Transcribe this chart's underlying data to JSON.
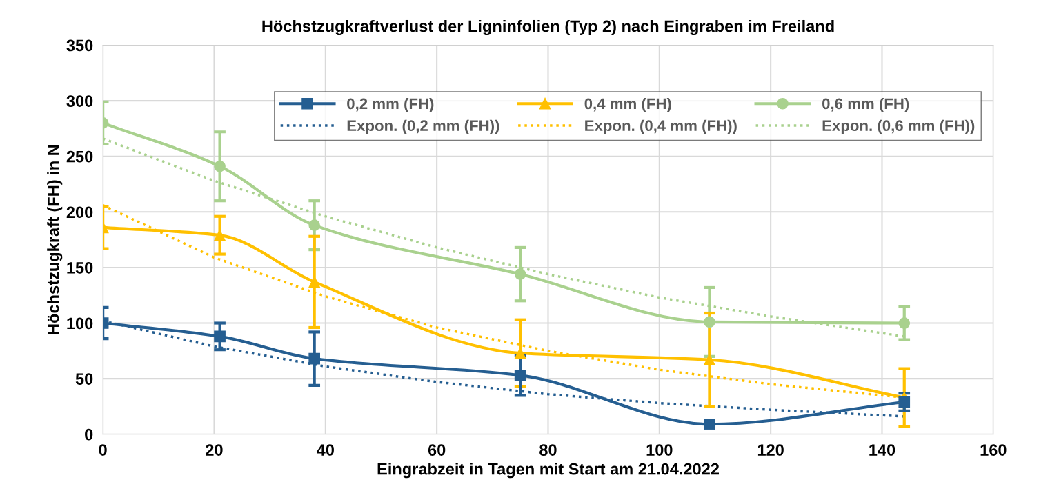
{
  "chart_data": {
    "type": "line",
    "title": "Höchstzugkraftverlust der Ligninfolien (Typ 2) nach Eingraben im Freiland",
    "xlabel": "Eingrabzeit in Tagen mit Start am 21.04.2022",
    "ylabel": "Höchstzugkraft (FH) in N",
    "x": [
      0,
      21,
      38,
      75,
      109,
      144
    ],
    "series": [
      {
        "name": "0,2 mm (FH)",
        "color": "#255e91",
        "marker": "square",
        "line_style": "solid",
        "values": [
          100,
          88,
          68,
          53,
          9,
          29
        ],
        "errors": [
          14,
          12,
          24,
          18,
          null,
          8
        ]
      },
      {
        "name": "Expon. (0,2 mm (FH))",
        "color": "#255e91",
        "marker": "none",
        "line_style": "dotted",
        "x": [
          0,
          20,
          40,
          60,
          80,
          100,
          120,
          144
        ],
        "values": [
          102,
          79,
          61,
          47,
          36,
          28,
          22,
          16
        ]
      },
      {
        "name": "0,4 mm (FH)",
        "color": "#ffc000",
        "marker": "triangle",
        "line_style": "solid",
        "values": [
          186,
          179,
          137,
          73,
          67,
          33
        ],
        "errors": [
          19,
          17,
          41,
          30,
          42,
          26
        ]
      },
      {
        "name": "Expon. (0,4 mm (FH))",
        "color": "#ffc000",
        "marker": "none",
        "line_style": "dotted",
        "x": [
          0,
          20,
          40,
          60,
          80,
          100,
          120,
          144
        ],
        "values": [
          206,
          159,
          124,
          96,
          75,
          58,
          45,
          33
        ]
      },
      {
        "name": "0,6 mm (FH)",
        "color": "#a9d18e",
        "marker": "circle",
        "line_style": "solid",
        "values": [
          280,
          241,
          188,
          144,
          101,
          100
        ],
        "errors": [
          19,
          31,
          22,
          24,
          31,
          15
        ]
      },
      {
        "name": "Expon. (0,6 mm (FH))",
        "color": "#a9d18e",
        "marker": "none",
        "line_style": "dotted",
        "x": [
          0,
          20,
          40,
          60,
          80,
          100,
          120,
          144
        ],
        "values": [
          266,
          228,
          196,
          168,
          144,
          123,
          106,
          88
        ]
      }
    ],
    "xlim": [
      0,
      160
    ],
    "xticks": [
      0,
      20,
      40,
      60,
      80,
      100,
      120,
      140,
      160
    ],
    "ylim": [
      0,
      350
    ],
    "yticks": [
      0,
      50,
      100,
      150,
      200,
      250,
      300,
      350
    ],
    "grid": true,
    "legend": "top right"
  }
}
